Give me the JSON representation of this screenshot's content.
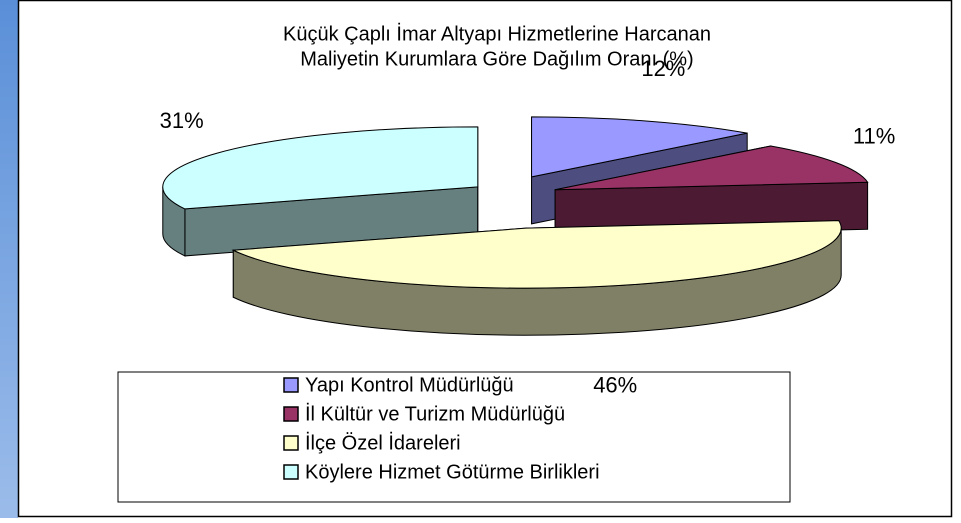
{
  "chart_data": {
    "type": "pie3d",
    "title": [
      "Küçük Çaplı İmar Altyapı Hizmetlerine Harcanan",
      "Maliyetin Kurumlara Göre Dağılım Oranı (%)"
    ],
    "categories": [
      "Yapı Kontrol Müdürlüğü",
      "İl Kültür ve Turizm Müdürlüğü",
      "İlçe Özel İdareleri",
      "Köylere Hizmet Götürme Birlikleri"
    ],
    "values": [
      12,
      11,
      46,
      31
    ],
    "value_labels": [
      "12%",
      "11%",
      "46%",
      "31%"
    ],
    "colors": [
      "#9999ff",
      "#993366",
      "#ffffcc",
      "#ccffff"
    ],
    "legend": "bottom"
  }
}
